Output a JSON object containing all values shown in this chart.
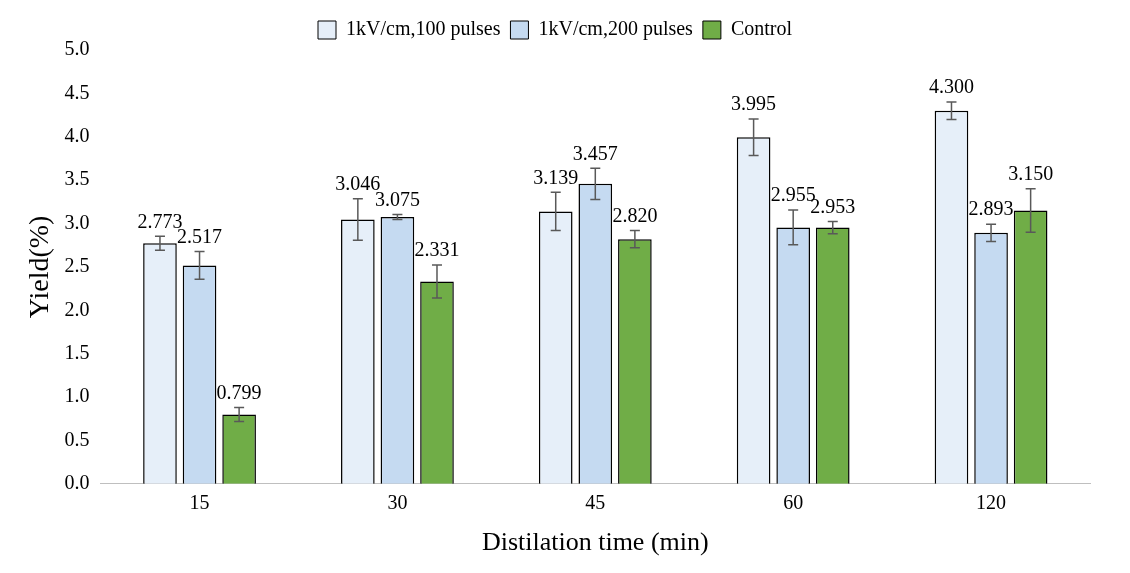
{
  "chart_data": {
    "type": "bar",
    "xlabel": "Distilation time (min)",
    "ylabel": "Yield(%)",
    "categories": [
      "15",
      "30",
      "45",
      "60",
      "120"
    ],
    "series": [
      {
        "name": "1kV/cm,100 pulses",
        "color": "#e6eff9",
        "values": [
          2.773,
          3.046,
          3.139,
          3.995,
          4.3
        ],
        "errors": [
          0.08,
          0.24,
          0.22,
          0.21,
          0.1
        ],
        "value_labels": [
          "2.773",
          "3.046",
          "3.139",
          "3.995",
          "4.300"
        ]
      },
      {
        "name": "1kV/cm,200 pulses",
        "color": "#c5daf1",
        "values": [
          2.517,
          3.075,
          3.457,
          2.955,
          2.893
        ],
        "errors": [
          0.16,
          0.03,
          0.18,
          0.2,
          0.1
        ],
        "value_labels": [
          "2.517",
          "3.075",
          "3.457",
          "2.955",
          "2.893"
        ]
      },
      {
        "name": "Control",
        "color": "#70ad47",
        "values": [
          0.799,
          2.331,
          2.82,
          2.953,
          3.15
        ],
        "errors": [
          0.08,
          0.19,
          0.1,
          0.07,
          0.25
        ],
        "value_labels": [
          "0.799",
          "2.331",
          "2.820",
          "2.953",
          "3.150"
        ]
      }
    ],
    "ylim": [
      0,
      5
    ],
    "yticks": [
      {
        "value": 0,
        "label": "0.0"
      },
      {
        "value": 0.5,
        "label": "0.5"
      },
      {
        "value": 1,
        "label": "1.0"
      },
      {
        "value": 1.5,
        "label": "1.5"
      },
      {
        "value": 2,
        "label": "2.0"
      },
      {
        "value": 2.5,
        "label": "2.5"
      },
      {
        "value": 3,
        "label": "3.0"
      },
      {
        "value": 3.5,
        "label": "3.5"
      },
      {
        "value": 4,
        "label": "4.0"
      },
      {
        "value": 4.5,
        "label": "4.5"
      },
      {
        "value": 5,
        "label": "5.0"
      }
    ],
    "grid": false,
    "legend": "top"
  }
}
